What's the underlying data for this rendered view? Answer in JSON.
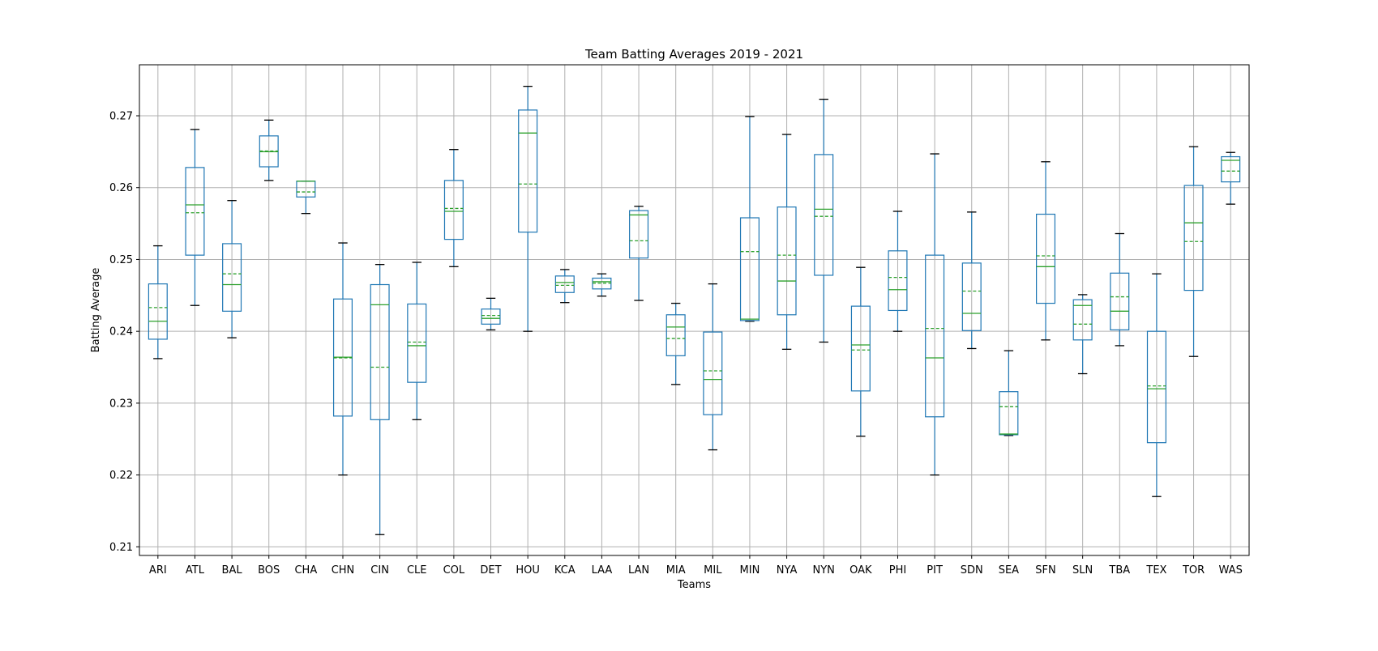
{
  "chart_data": {
    "type": "box",
    "title": "Team Batting Averages 2019 - 2021",
    "xlabel": "Teams",
    "ylabel": "Batting Average",
    "ylim": [
      0.2088,
      0.2771
    ],
    "yticks": [
      0.21,
      0.22,
      0.23,
      0.24,
      0.25,
      0.26,
      0.27
    ],
    "ytick_labels": [
      "0.21",
      "0.22",
      "0.23",
      "0.24",
      "0.25",
      "0.26",
      "0.27"
    ],
    "grid": true,
    "legend": "none",
    "colors": {
      "box": "#1f77b4",
      "median": "#2ca02c",
      "mean": "#2ca02c",
      "whisker_cap": "#000000",
      "grid": "#b0b0b0"
    },
    "boxes": [
      {
        "team": "ARI",
        "whislo": 0.2362,
        "q1": 0.2389,
        "median": 0.2414,
        "mean": 0.2433,
        "q3": 0.2466,
        "whishi": 0.2519
      },
      {
        "team": "ATL",
        "whislo": 0.2436,
        "q1": 0.2506,
        "median": 0.2576,
        "mean": 0.2565,
        "q3": 0.2628,
        "whishi": 0.2681
      },
      {
        "team": "BAL",
        "whislo": 0.2391,
        "q1": 0.2428,
        "median": 0.2465,
        "mean": 0.248,
        "q3": 0.2522,
        "whishi": 0.2582
      },
      {
        "team": "BOS",
        "whislo": 0.261,
        "q1": 0.2629,
        "median": 0.265,
        "mean": 0.2651,
        "q3": 0.2672,
        "whishi": 0.2694
      },
      {
        "team": "CHA",
        "whislo": 0.2564,
        "q1": 0.2587,
        "median": 0.2609,
        "mean": 0.2594,
        "q3": 0.2609,
        "whishi": 0.2609
      },
      {
        "team": "CHN",
        "whislo": 0.22,
        "q1": 0.2282,
        "median": 0.2364,
        "mean": 0.2363,
        "q3": 0.2445,
        "whishi": 0.2523
      },
      {
        "team": "CIN",
        "whislo": 0.2117,
        "q1": 0.2277,
        "median": 0.2437,
        "mean": 0.235,
        "q3": 0.2465,
        "whishi": 0.2493
      },
      {
        "team": "CLE",
        "whislo": 0.2277,
        "q1": 0.2329,
        "median": 0.238,
        "mean": 0.2385,
        "q3": 0.2438,
        "whishi": 0.2496
      },
      {
        "team": "COL",
        "whislo": 0.249,
        "q1": 0.2528,
        "median": 0.2567,
        "mean": 0.2571,
        "q3": 0.261,
        "whishi": 0.2653
      },
      {
        "team": "DET",
        "whislo": 0.2402,
        "q1": 0.241,
        "median": 0.2418,
        "mean": 0.2422,
        "q3": 0.2431,
        "whishi": 0.2446
      },
      {
        "team": "HOU",
        "whislo": 0.24,
        "q1": 0.2538,
        "median": 0.2676,
        "mean": 0.2605,
        "q3": 0.2708,
        "whishi": 0.2741
      },
      {
        "team": "KCA",
        "whislo": 0.244,
        "q1": 0.2454,
        "median": 0.2468,
        "mean": 0.2464,
        "q3": 0.2477,
        "whishi": 0.2486
      },
      {
        "team": "LAA",
        "whislo": 0.2449,
        "q1": 0.2459,
        "median": 0.2469,
        "mean": 0.2467,
        "q3": 0.2474,
        "whishi": 0.248
      },
      {
        "team": "LAN",
        "whislo": 0.2443,
        "q1": 0.2502,
        "median": 0.2562,
        "mean": 0.2526,
        "q3": 0.2568,
        "whishi": 0.2574
      },
      {
        "team": "MIA",
        "whislo": 0.2326,
        "q1": 0.2366,
        "median": 0.2406,
        "mean": 0.239,
        "q3": 0.2423,
        "whishi": 0.2439
      },
      {
        "team": "MIL",
        "whislo": 0.2235,
        "q1": 0.2284,
        "median": 0.2333,
        "mean": 0.2345,
        "q3": 0.2399,
        "whishi": 0.2466
      },
      {
        "team": "MIN",
        "whislo": 0.2414,
        "q1": 0.2415,
        "median": 0.2417,
        "mean": 0.2511,
        "q3": 0.2558,
        "whishi": 0.2699
      },
      {
        "team": "NYA",
        "whislo": 0.2375,
        "q1": 0.2423,
        "median": 0.247,
        "mean": 0.2506,
        "q3": 0.2573,
        "whishi": 0.2674
      },
      {
        "team": "NYN",
        "whislo": 0.2385,
        "q1": 0.2478,
        "median": 0.257,
        "mean": 0.256,
        "q3": 0.2646,
        "whishi": 0.2723
      },
      {
        "team": "OAK",
        "whislo": 0.2254,
        "q1": 0.2317,
        "median": 0.2381,
        "mean": 0.2374,
        "q3": 0.2435,
        "whishi": 0.2489
      },
      {
        "team": "PHI",
        "whislo": 0.24,
        "q1": 0.2429,
        "median": 0.2458,
        "mean": 0.2475,
        "q3": 0.2512,
        "whishi": 0.2567
      },
      {
        "team": "PIT",
        "whislo": 0.22,
        "q1": 0.2281,
        "median": 0.2363,
        "mean": 0.2404,
        "q3": 0.2506,
        "whishi": 0.2647
      },
      {
        "team": "SDN",
        "whislo": 0.2376,
        "q1": 0.2401,
        "median": 0.2425,
        "mean": 0.2456,
        "q3": 0.2495,
        "whishi": 0.2566
      },
      {
        "team": "SEA",
        "whislo": 0.2255,
        "q1": 0.2256,
        "median": 0.2257,
        "mean": 0.2295,
        "q3": 0.2316,
        "whishi": 0.2373
      },
      {
        "team": "SFN",
        "whislo": 0.2388,
        "q1": 0.2439,
        "median": 0.249,
        "mean": 0.2505,
        "q3": 0.2563,
        "whishi": 0.2636
      },
      {
        "team": "SLN",
        "whislo": 0.2341,
        "q1": 0.2388,
        "median": 0.2436,
        "mean": 0.241,
        "q3": 0.2444,
        "whishi": 0.2451
      },
      {
        "team": "TBA",
        "whislo": 0.238,
        "q1": 0.2402,
        "median": 0.2428,
        "mean": 0.2448,
        "q3": 0.2481,
        "whishi": 0.2536
      },
      {
        "team": "TEX",
        "whislo": 0.217,
        "q1": 0.2245,
        "median": 0.232,
        "mean": 0.2324,
        "q3": 0.24,
        "whishi": 0.248
      },
      {
        "team": "TOR",
        "whislo": 0.2365,
        "q1": 0.2457,
        "median": 0.2551,
        "mean": 0.2525,
        "q3": 0.2603,
        "whishi": 0.2657
      },
      {
        "team": "WAS",
        "whislo": 0.2577,
        "q1": 0.2608,
        "median": 0.2638,
        "mean": 0.2623,
        "q3": 0.2643,
        "whishi": 0.2649
      }
    ]
  }
}
